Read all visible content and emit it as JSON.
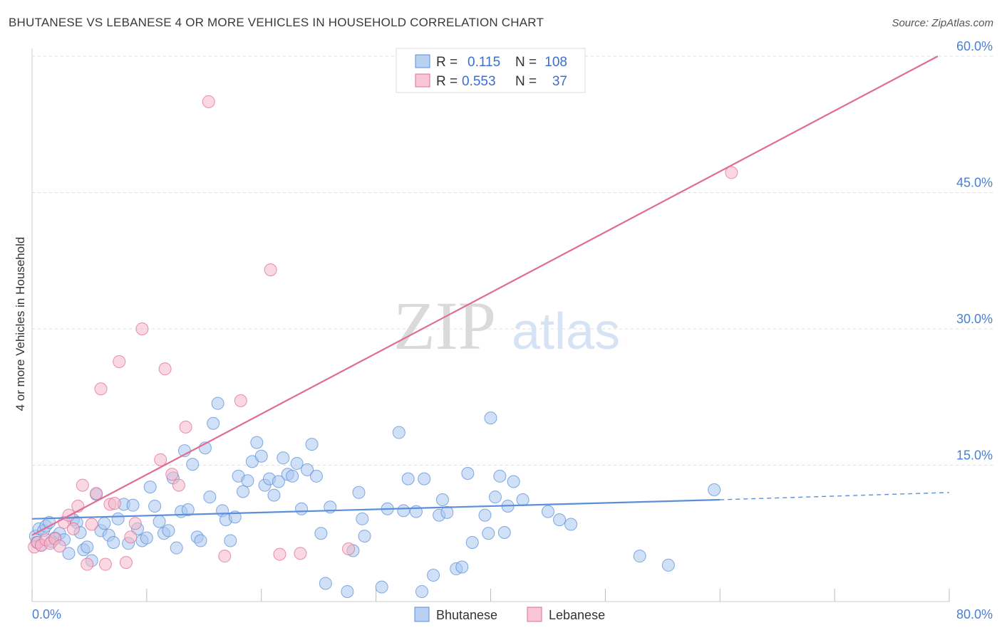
{
  "header": {
    "title": "BHUTANESE VS LEBANESE 4 OR MORE VEHICLES IN HOUSEHOLD CORRELATION CHART",
    "source": "Source: ZipAtlas.com"
  },
  "colors": {
    "bhutanese": "#5b8fd9",
    "bhutanese_fill": "#a9c6ee",
    "lebanese": "#e06c93",
    "lebanese_fill": "#f4b8ca",
    "tick_text": "#4a7fd4",
    "grid": "#dddddd"
  },
  "watermark": {
    "zip": "ZIP",
    "atlas": "atlas"
  },
  "legend": {
    "rows": [
      {
        "r_label": "R =",
        "r_value": "0.115",
        "n_label": "N =",
        "n_value": "108"
      },
      {
        "r_label": "R =",
        "r_value": "0.553",
        "n_label": "N =",
        "n_value": "37"
      }
    ]
  },
  "bottom_legend": {
    "items": [
      "Bhutanese",
      "Lebanese"
    ]
  },
  "chart_data": {
    "type": "scatter",
    "title": "BHUTANESE VS LEBANESE 4 OR MORE VEHICLES IN HOUSEHOLD CORRELATION CHART",
    "xlabel": "",
    "ylabel": "4 or more Vehicles in Household",
    "xlim": [
      0,
      80
    ],
    "ylim": [
      0,
      60
    ],
    "x_tick_labels": [
      "0.0%",
      "80.0%"
    ],
    "y_ticks": [
      15,
      30,
      45,
      60
    ],
    "y_tick_labels": [
      "15.0%",
      "30.0%",
      "45.0%",
      "60.0%"
    ],
    "grid": true,
    "legend_position": "top-center",
    "series": [
      {
        "name": "Bhutanese",
        "color": "#5b8fd9",
        "trend": {
          "x": [
            0,
            60
          ],
          "y": [
            9.1,
            11.2
          ],
          "dashed_to": [
            80,
            12.0
          ]
        },
        "points": [
          [
            0.3,
            7.2
          ],
          [
            0.4,
            6.5
          ],
          [
            0.6,
            8.0
          ],
          [
            0.8,
            6.2
          ],
          [
            1.0,
            7.8
          ],
          [
            1.2,
            8.3
          ],
          [
            1.5,
            8.7
          ],
          [
            1.7,
            6.6
          ],
          [
            2.0,
            7.0
          ],
          [
            2.4,
            7.5
          ],
          [
            2.8,
            6.8
          ],
          [
            3.2,
            5.3
          ],
          [
            3.6,
            9.0
          ],
          [
            3.9,
            8.7
          ],
          [
            4.2,
            7.6
          ],
          [
            4.5,
            5.7
          ],
          [
            4.8,
            6.0
          ],
          [
            5.2,
            4.5
          ],
          [
            5.6,
            11.8
          ],
          [
            6.0,
            7.8
          ],
          [
            6.3,
            8.6
          ],
          [
            6.7,
            7.3
          ],
          [
            7.1,
            6.5
          ],
          [
            7.5,
            9.1
          ],
          [
            8.0,
            10.7
          ],
          [
            8.4,
            6.4
          ],
          [
            8.8,
            10.6
          ],
          [
            9.2,
            8.0
          ],
          [
            9.6,
            6.7
          ],
          [
            10.0,
            7.0
          ],
          [
            10.3,
            12.6
          ],
          [
            10.7,
            10.5
          ],
          [
            11.1,
            8.8
          ],
          [
            11.5,
            7.5
          ],
          [
            11.9,
            7.8
          ],
          [
            12.3,
            13.6
          ],
          [
            12.6,
            5.9
          ],
          [
            13.0,
            9.9
          ],
          [
            13.3,
            16.6
          ],
          [
            13.6,
            10.1
          ],
          [
            14.0,
            15.1
          ],
          [
            14.4,
            7.1
          ],
          [
            14.7,
            6.7
          ],
          [
            15.1,
            16.9
          ],
          [
            15.5,
            11.5
          ],
          [
            15.8,
            19.6
          ],
          [
            16.2,
            21.8
          ],
          [
            16.6,
            10.0
          ],
          [
            16.9,
            9.0
          ],
          [
            17.3,
            6.7
          ],
          [
            17.7,
            9.3
          ],
          [
            18.0,
            13.8
          ],
          [
            18.4,
            12.1
          ],
          [
            18.8,
            13.3
          ],
          [
            19.2,
            15.4
          ],
          [
            19.6,
            17.5
          ],
          [
            20.0,
            16.0
          ],
          [
            20.3,
            12.8
          ],
          [
            20.7,
            13.5
          ],
          [
            21.1,
            11.7
          ],
          [
            21.5,
            13.2
          ],
          [
            21.9,
            15.8
          ],
          [
            22.3,
            14.0
          ],
          [
            22.7,
            13.8
          ],
          [
            23.1,
            15.2
          ],
          [
            23.5,
            10.2
          ],
          [
            24.0,
            14.5
          ],
          [
            24.4,
            17.3
          ],
          [
            24.8,
            13.8
          ],
          [
            25.2,
            7.5
          ],
          [
            25.6,
            2.0
          ],
          [
            26.0,
            10.4
          ],
          [
            27.5,
            1.1
          ],
          [
            28.0,
            5.6
          ],
          [
            28.5,
            12.0
          ],
          [
            28.8,
            9.1
          ],
          [
            29.0,
            7.2
          ],
          [
            30.5,
            1.6
          ],
          [
            31.0,
            10.2
          ],
          [
            32.0,
            18.6
          ],
          [
            32.4,
            10.0
          ],
          [
            32.8,
            13.5
          ],
          [
            33.5,
            9.9
          ],
          [
            34.0,
            1.1
          ],
          [
            34.2,
            13.5
          ],
          [
            35.0,
            2.9
          ],
          [
            35.5,
            9.5
          ],
          [
            35.8,
            11.2
          ],
          [
            36.2,
            9.8
          ],
          [
            37.0,
            3.6
          ],
          [
            37.5,
            3.8
          ],
          [
            38.0,
            14.1
          ],
          [
            38.4,
            6.5
          ],
          [
            39.5,
            9.5
          ],
          [
            39.8,
            7.5
          ],
          [
            40.0,
            20.2
          ],
          [
            40.4,
            11.5
          ],
          [
            40.8,
            13.8
          ],
          [
            41.2,
            7.6
          ],
          [
            41.5,
            10.5
          ],
          [
            42.0,
            13.2
          ],
          [
            42.8,
            11.2
          ],
          [
            45.0,
            9.9
          ],
          [
            46.0,
            9.0
          ],
          [
            47.0,
            8.5
          ],
          [
            53.0,
            5.0
          ],
          [
            55.5,
            4.0
          ],
          [
            59.5,
            12.3
          ]
        ]
      },
      {
        "name": "Lebanese",
        "color": "#e06c93",
        "trend": {
          "x": [
            0,
            79
          ],
          "y": [
            7.3,
            60.0
          ]
        },
        "points": [
          [
            0.2,
            6.0
          ],
          [
            0.5,
            6.5
          ],
          [
            0.8,
            6.2
          ],
          [
            1.2,
            6.8
          ],
          [
            1.6,
            6.4
          ],
          [
            2.0,
            6.9
          ],
          [
            2.4,
            6.1
          ],
          [
            2.8,
            8.7
          ],
          [
            3.2,
            9.5
          ],
          [
            3.6,
            8.0
          ],
          [
            4.0,
            10.5
          ],
          [
            4.4,
            12.8
          ],
          [
            4.8,
            4.1
          ],
          [
            5.2,
            8.5
          ],
          [
            5.6,
            11.9
          ],
          [
            6.0,
            23.4
          ],
          [
            6.4,
            4.1
          ],
          [
            6.8,
            10.7
          ],
          [
            7.2,
            10.8
          ],
          [
            7.6,
            26.4
          ],
          [
            8.2,
            4.3
          ],
          [
            8.6,
            7.1
          ],
          [
            9.0,
            8.6
          ],
          [
            9.6,
            30.0
          ],
          [
            11.2,
            15.6
          ],
          [
            11.6,
            25.6
          ],
          [
            12.2,
            14.0
          ],
          [
            12.8,
            12.8
          ],
          [
            13.4,
            19.2
          ],
          [
            15.4,
            55.0
          ],
          [
            16.8,
            5.0
          ],
          [
            18.2,
            22.1
          ],
          [
            20.8,
            36.5
          ],
          [
            21.6,
            5.2
          ],
          [
            23.4,
            5.3
          ],
          [
            27.6,
            5.8
          ],
          [
            61.0,
            47.2
          ]
        ]
      }
    ]
  }
}
